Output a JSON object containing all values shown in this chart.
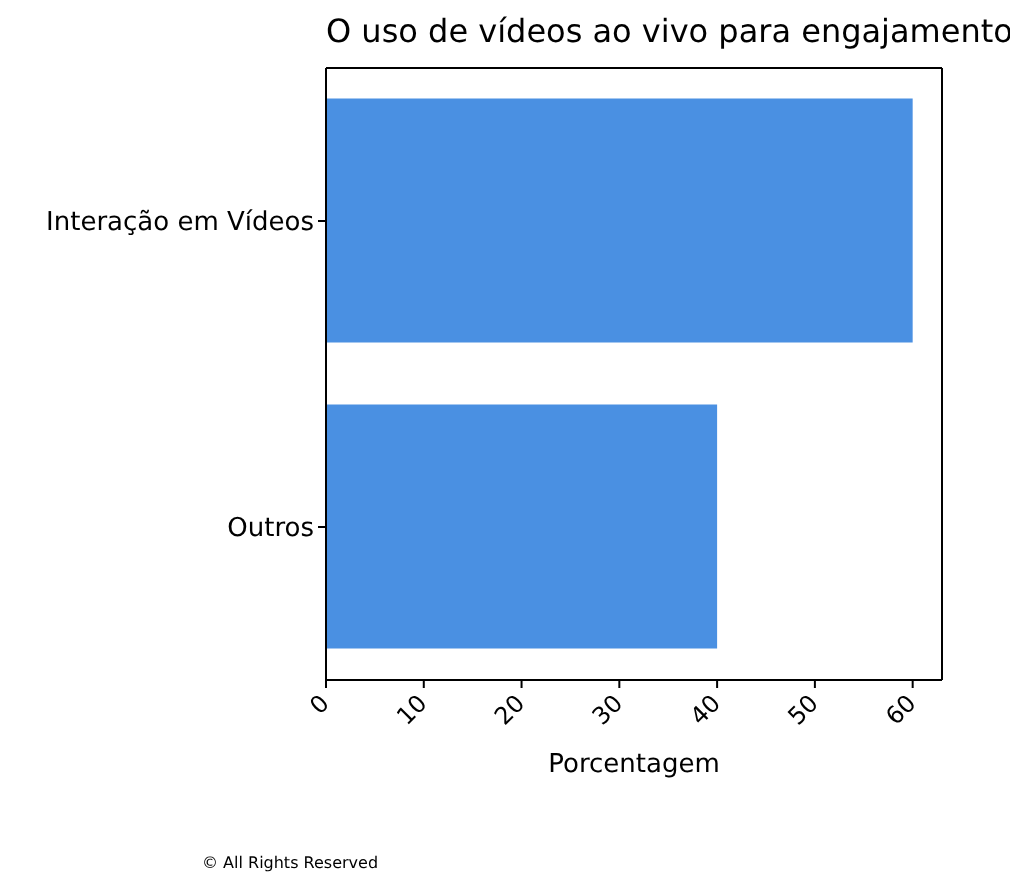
{
  "chart_data": {
    "type": "bar",
    "orientation": "horizontal",
    "title": "O uso de vídeos ao vivo para engajamento",
    "xlabel": "Porcentagem",
    "categories": [
      "Interação em Vídeos",
      "Outros"
    ],
    "values": [
      60,
      40
    ],
    "color": "#4a90e2",
    "xlim": [
      0,
      63
    ],
    "xticks": [
      0,
      10,
      20,
      30,
      40,
      50,
      60
    ],
    "annotations": [
      "© All Rights Reserved"
    ]
  }
}
